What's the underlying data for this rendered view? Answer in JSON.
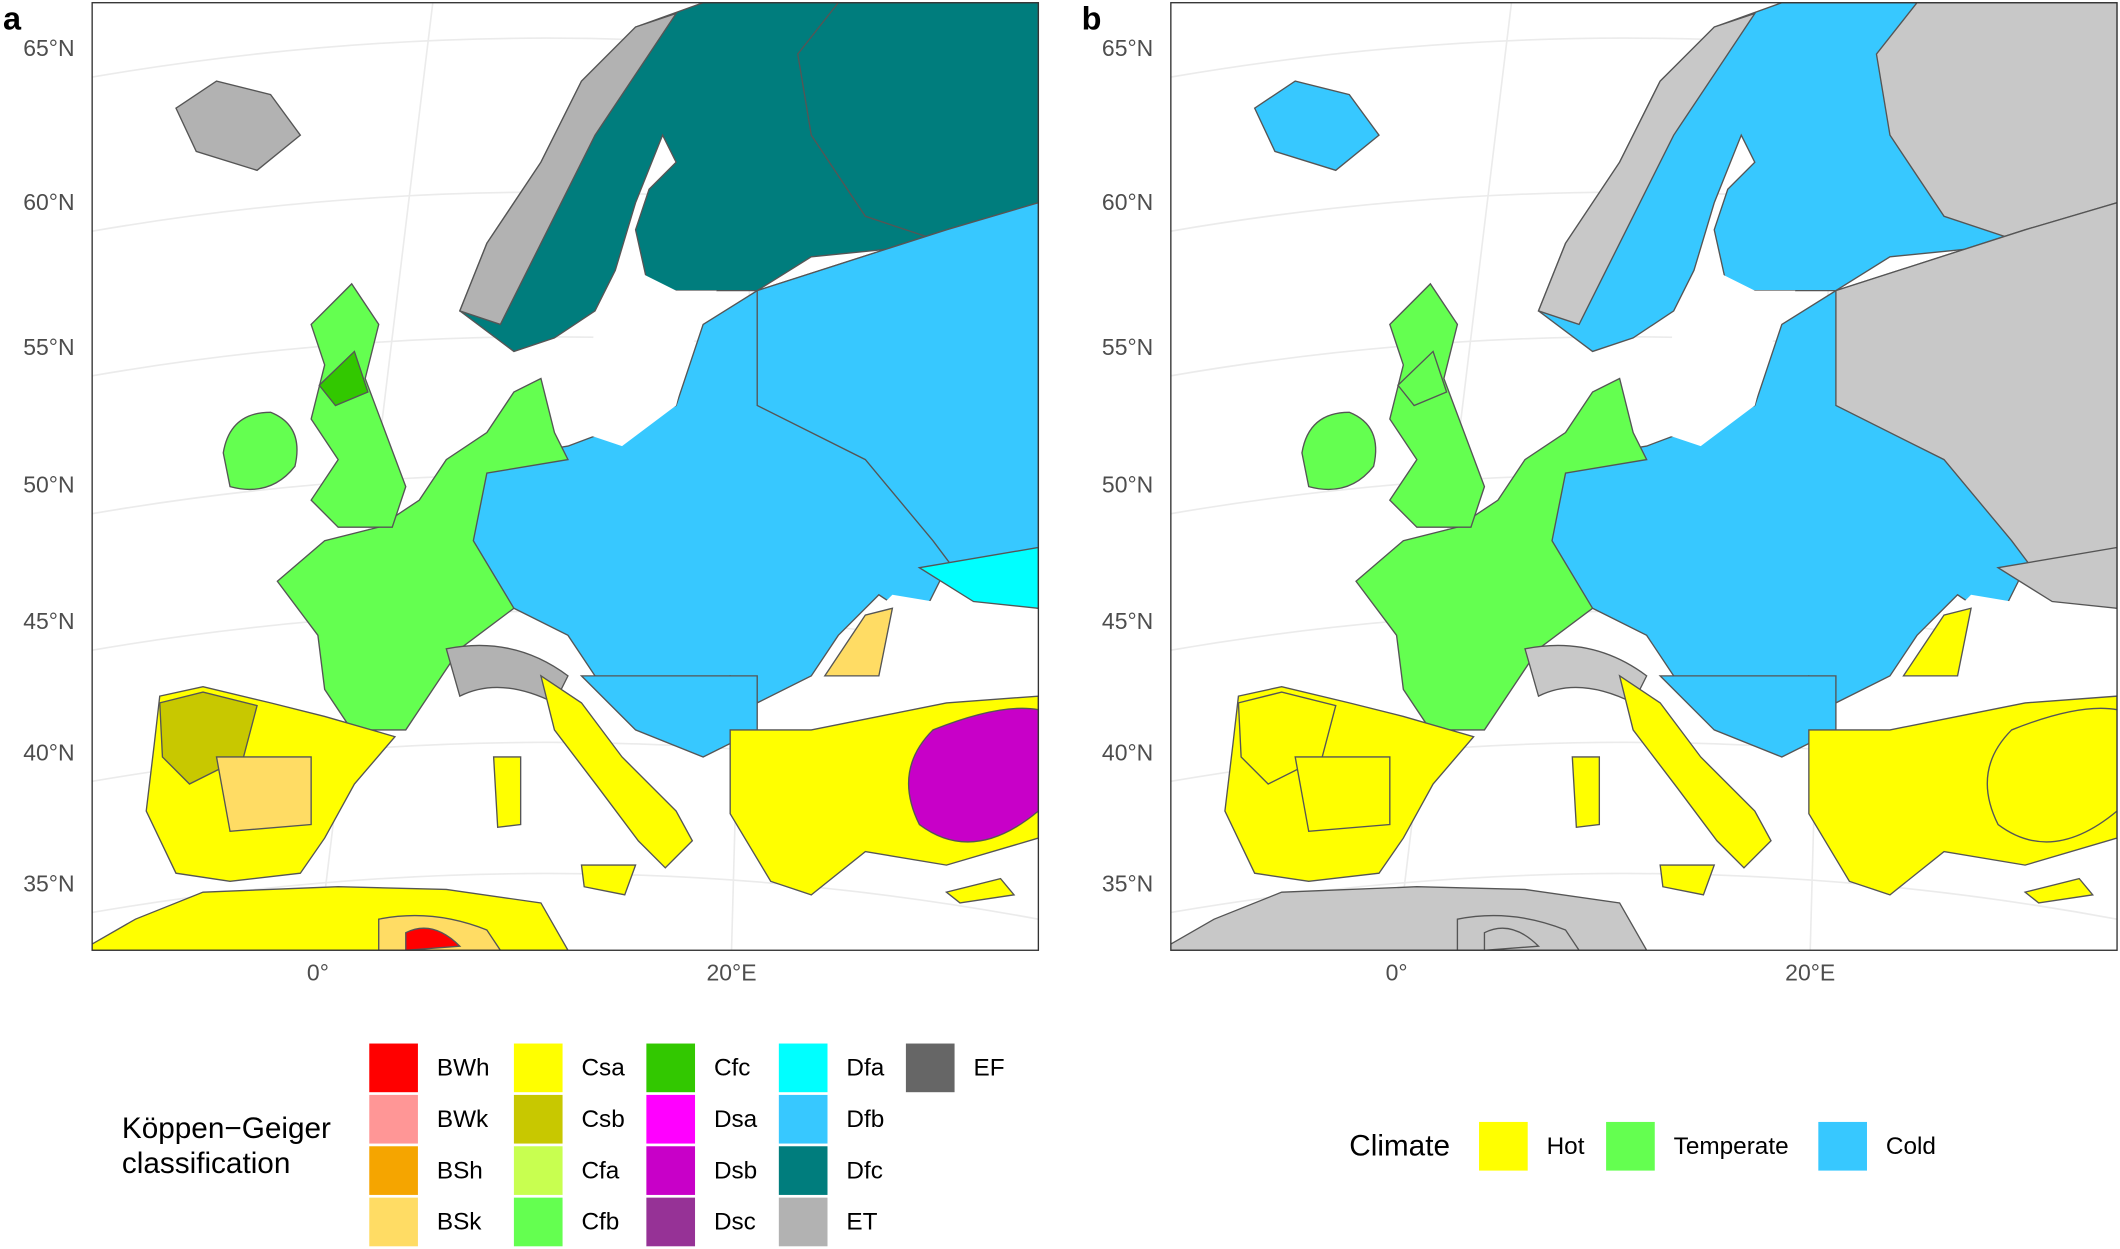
{
  "panels": [
    {
      "label": "a",
      "lat_labels": [
        "65°N",
        "60°N",
        "55°N",
        "50°N",
        "45°N",
        "40°N",
        "35°N"
      ],
      "lon_labels": [
        "0°",
        "20°E"
      ]
    },
    {
      "label": "b",
      "lat_labels": [
        "65°N",
        "60°N",
        "55°N",
        "50°N",
        "45°N",
        "40°N",
        "35°N"
      ],
      "lon_labels": [
        "0°",
        "20°E"
      ]
    }
  ],
  "legend_a": {
    "title_lines": [
      "Köppen−Geiger",
      "classification"
    ],
    "classes": [
      {
        "code": "BWh",
        "color": "#ff0000"
      },
      {
        "code": "BWk",
        "color": "#ff9696"
      },
      {
        "code": "BSh",
        "color": "#f5a500"
      },
      {
        "code": "BSk",
        "color": "#ffdc64"
      },
      {
        "code": "Csa",
        "color": "#ffff00"
      },
      {
        "code": "Csb",
        "color": "#c8c800"
      },
      {
        "code": "Cfa",
        "color": "#c8ff50"
      },
      {
        "code": "Cfb",
        "color": "#64ff50"
      },
      {
        "code": "Cfc",
        "color": "#32c800"
      },
      {
        "code": "Dsa",
        "color": "#ff00ff"
      },
      {
        "code": "Dsb",
        "color": "#c800c8"
      },
      {
        "code": "Dsc",
        "color": "#963296"
      },
      {
        "code": "Dfa",
        "color": "#00ffff"
      },
      {
        "code": "Dfb",
        "color": "#37c8ff"
      },
      {
        "code": "Dfc",
        "color": "#007d7d"
      },
      {
        "code": "ET",
        "color": "#b2b2b2"
      },
      {
        "code": "EF",
        "color": "#666666"
      }
    ]
  },
  "legend_b": {
    "title": "Climate",
    "classes": [
      {
        "code": "Hot",
        "color": "#ffff00"
      },
      {
        "code": "Temperate",
        "color": "#64ff50"
      },
      {
        "code": "Cold",
        "color": "#37c8ff"
      }
    ]
  }
}
